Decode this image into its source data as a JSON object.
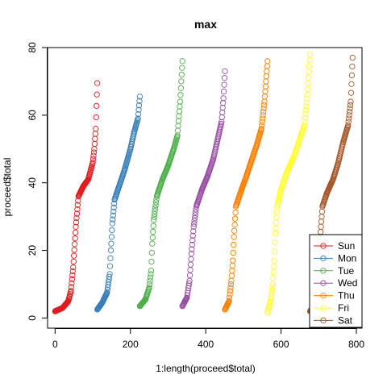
{
  "chart_data": {
    "type": "scatter",
    "title": "max",
    "xlabel": "1:length(proceed$total)",
    "ylabel": "proceed$total",
    "xlim": [
      -20,
      815
    ],
    "ylim": [
      -3,
      80
    ],
    "xticks": [
      0,
      200,
      400,
      600,
      800
    ],
    "yticks": [
      0,
      20,
      40,
      60,
      80
    ],
    "grid": false,
    "legend_position": "bottom-right",
    "marker": "open-circle",
    "series": [
      {
        "name": "Sun",
        "color": "#E41A1C",
        "x_range": [
          0,
          112
        ],
        "anchors": [
          [
            0,
            2
          ],
          [
            20,
            3
          ],
          [
            35,
            5
          ],
          [
            42,
            8
          ],
          [
            48,
            15
          ],
          [
            55,
            27
          ],
          [
            62,
            36
          ],
          [
            75,
            39
          ],
          [
            88,
            41
          ],
          [
            100,
            46
          ],
          [
            104,
            50
          ],
          [
            108,
            56
          ],
          [
            112,
            69.5
          ]
        ]
      },
      {
        "name": "Mon",
        "color": "#377EB8",
        "x_range": [
          112,
          225
        ],
        "anchors": [
          [
            112,
            2.5
          ],
          [
            125,
            4.5
          ],
          [
            138,
            7.5
          ],
          [
            145,
            13
          ],
          [
            148,
            20
          ],
          [
            152,
            28
          ],
          [
            158,
            35
          ],
          [
            170,
            39
          ],
          [
            185,
            44
          ],
          [
            200,
            50
          ],
          [
            210,
            55
          ],
          [
            220,
            59
          ],
          [
            225,
            65.5
          ]
        ]
      },
      {
        "name": "Tue",
        "color": "#4DAF4A",
        "x_range": [
          225,
          338
        ],
        "anchors": [
          [
            225,
            3.5
          ],
          [
            240,
            5.5
          ],
          [
            250,
            9
          ],
          [
            255,
            14
          ],
          [
            258,
            22
          ],
          [
            262,
            29
          ],
          [
            270,
            36
          ],
          [
            285,
            41
          ],
          [
            300,
            45
          ],
          [
            315,
            50
          ],
          [
            325,
            54
          ],
          [
            332,
            64
          ],
          [
            338,
            76
          ]
        ]
      },
      {
        "name": "Wed",
        "color": "#984EA3",
        "x_range": [
          338,
          451
        ],
        "anchors": [
          [
            338,
            3.5
          ],
          [
            350,
            6
          ],
          [
            357,
            11
          ],
          [
            362,
            19
          ],
          [
            368,
            27
          ],
          [
            375,
            33
          ],
          [
            390,
            38
          ],
          [
            405,
            42
          ],
          [
            420,
            47
          ],
          [
            432,
            53
          ],
          [
            442,
            58
          ],
          [
            447,
            65
          ],
          [
            451,
            73
          ]
        ]
      },
      {
        "name": "Thu",
        "color": "#FF7F00",
        "x_range": [
          451,
          564
        ],
        "anchors": [
          [
            451,
            2.5
          ],
          [
            462,
            5
          ],
          [
            468,
            11
          ],
          [
            472,
            17
          ],
          [
            475,
            24
          ],
          [
            480,
            33
          ],
          [
            492,
            37
          ],
          [
            505,
            41
          ],
          [
            520,
            46
          ],
          [
            535,
            51
          ],
          [
            548,
            56
          ],
          [
            556,
            64
          ],
          [
            564,
            76
          ]
        ]
      },
      {
        "name": "Fri",
        "color": "#FFFF33",
        "x_range": [
          564,
          677
        ],
        "anchors": [
          [
            564,
            1.5
          ],
          [
            572,
            5
          ],
          [
            578,
            10
          ],
          [
            582,
            17
          ],
          [
            585,
            25
          ],
          [
            590,
            33
          ],
          [
            600,
            38
          ],
          [
            615,
            43
          ],
          [
            635,
            48
          ],
          [
            650,
            53
          ],
          [
            662,
            57
          ],
          [
            670,
            66
          ],
          [
            677,
            78
          ]
        ]
      },
      {
        "name": "Sat",
        "color": "#A65628",
        "x_range": [
          677,
          790
        ],
        "anchors": [
          [
            677,
            2
          ],
          [
            688,
            3.5
          ],
          [
            695,
            7
          ],
          [
            700,
            15
          ],
          [
            704,
            24
          ],
          [
            710,
            33
          ],
          [
            722,
            37
          ],
          [
            738,
            41
          ],
          [
            752,
            46
          ],
          [
            765,
            52
          ],
          [
            778,
            57
          ],
          [
            785,
            64
          ],
          [
            790,
            77
          ]
        ]
      }
    ]
  }
}
